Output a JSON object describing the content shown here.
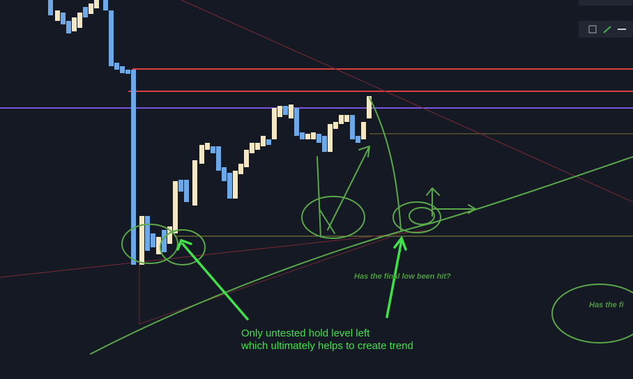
{
  "annotations": {
    "main_line_1": "Only untested hold level left",
    "main_line_2": "which ultimately helps to create trend",
    "question": "Has the final low been hit?",
    "question_cut": "Has the fi"
  }
}
